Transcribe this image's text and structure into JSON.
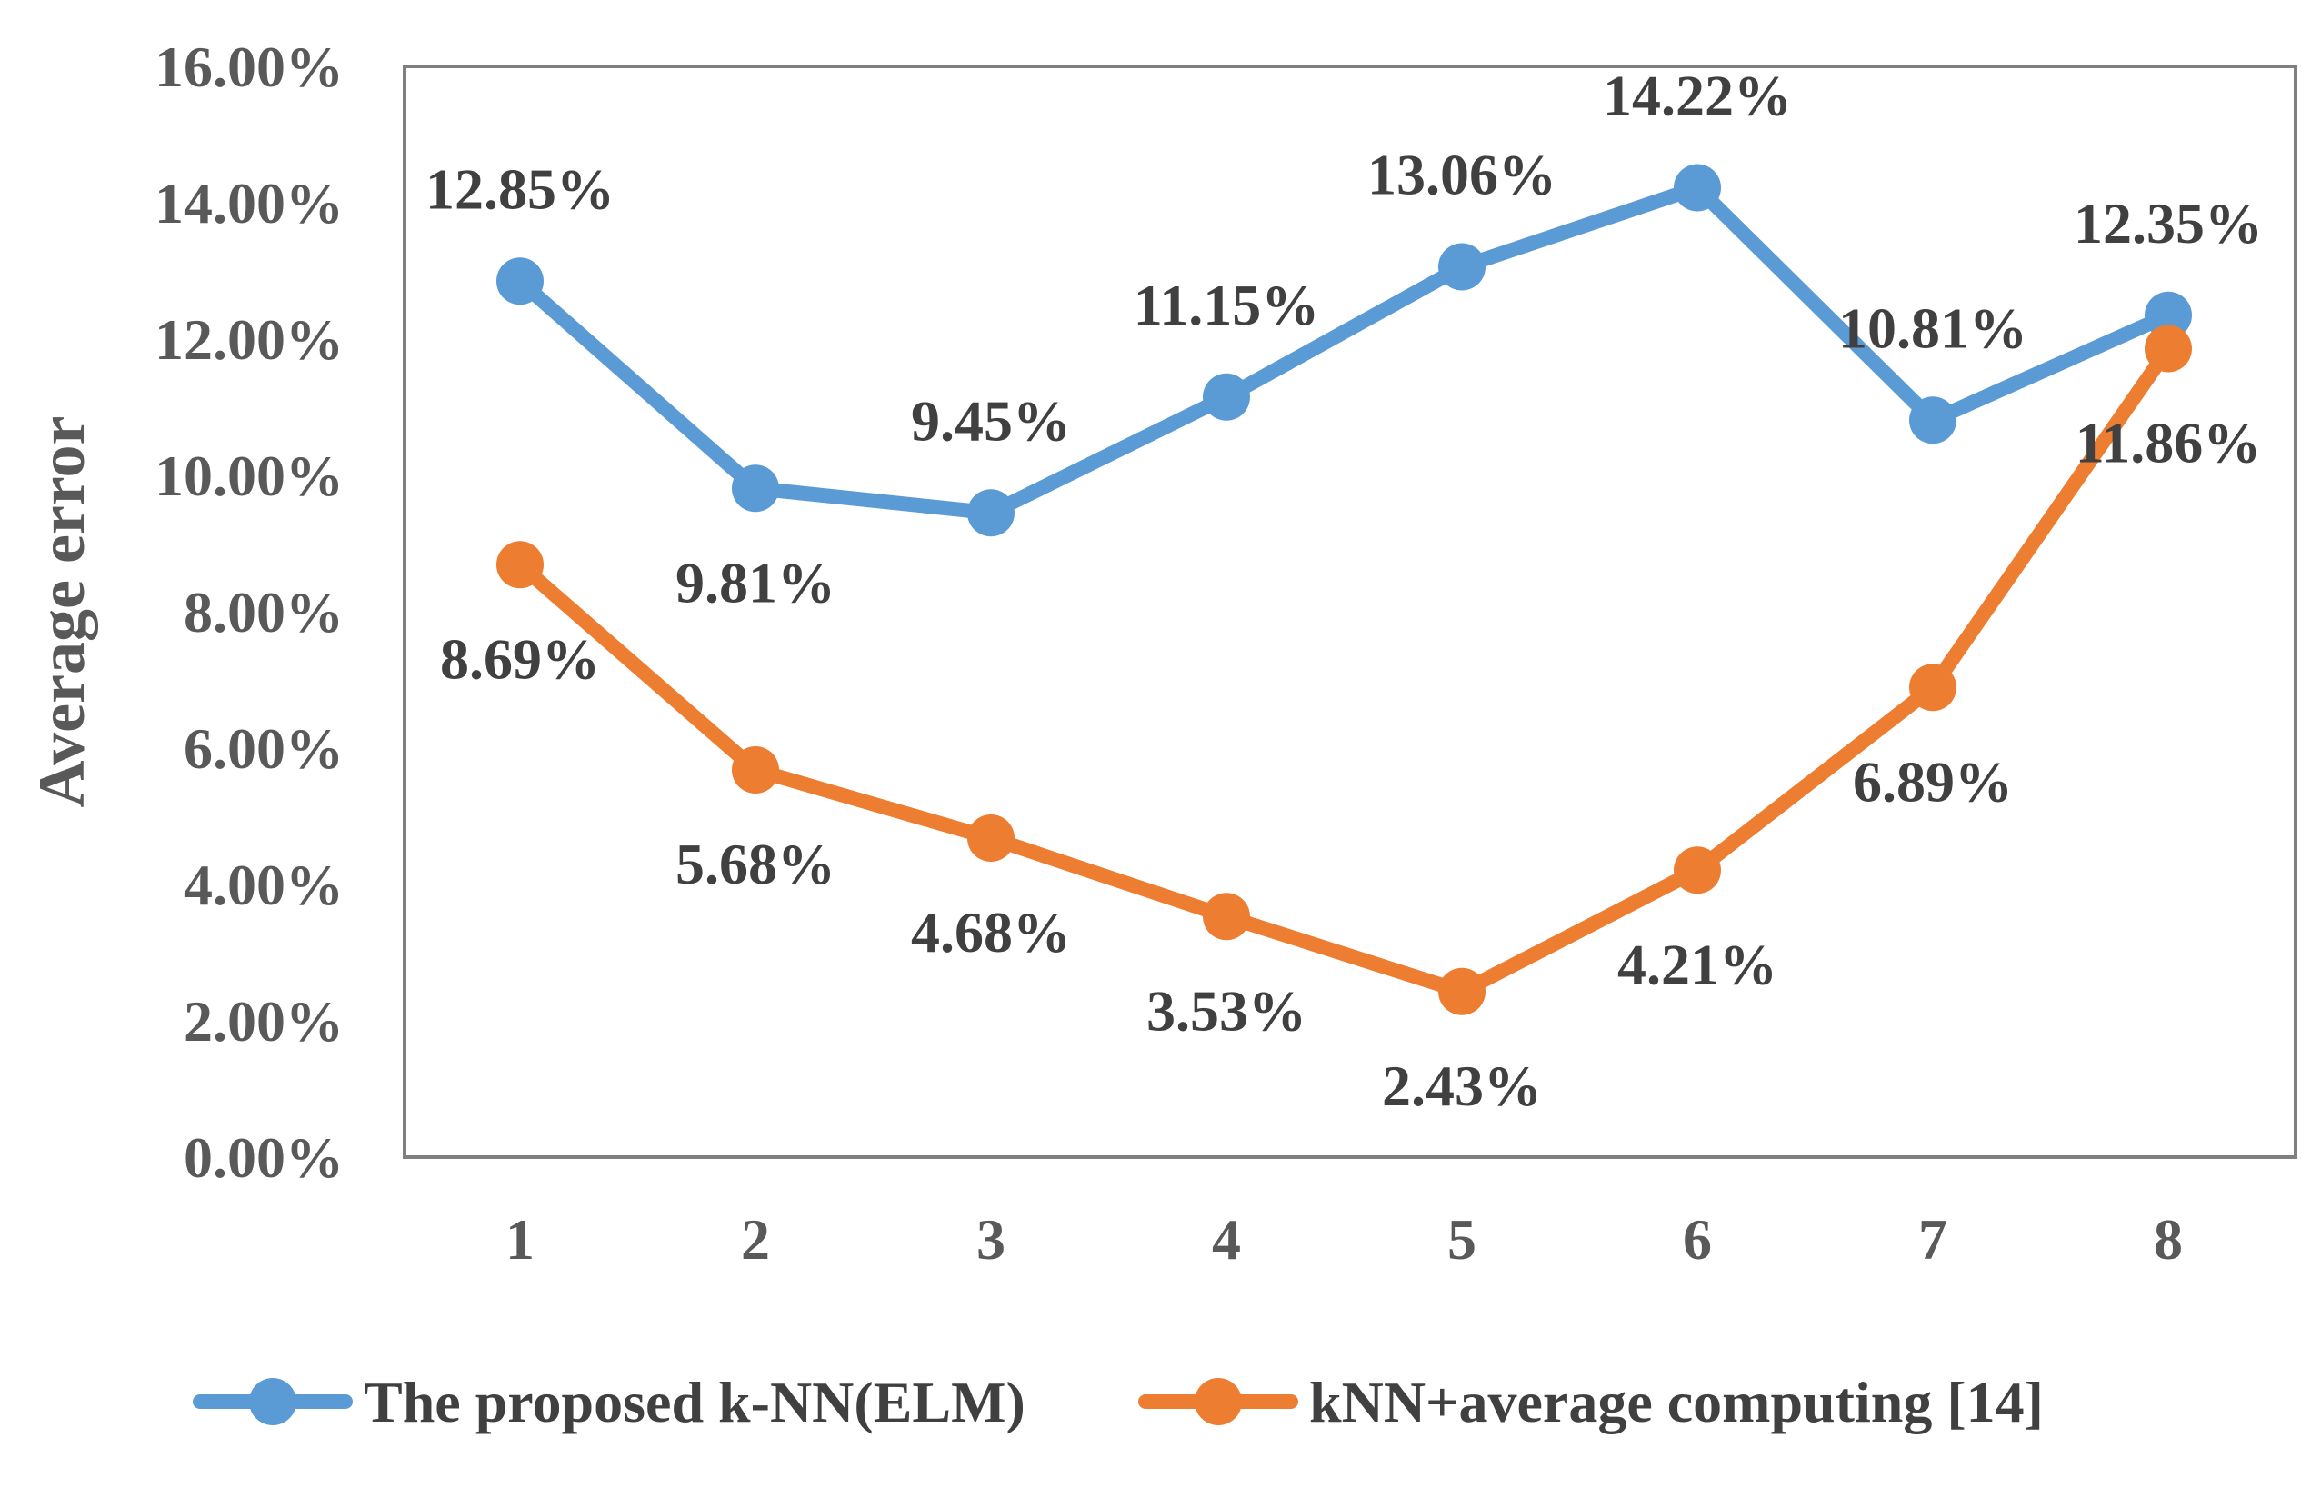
{
  "chart_data": {
    "type": "line",
    "title": "",
    "xlabel": "",
    "ylabel": "Average error",
    "categories": [
      "1",
      "2",
      "3",
      "4",
      "5",
      "6",
      "7",
      "8"
    ],
    "ylim": [
      0,
      16
    ],
    "ytick_labels": [
      "0.00%",
      "2.00%",
      "4.00%",
      "6.00%",
      "8.00%",
      "10.00%",
      "12.00%",
      "14.00%",
      "16.00%"
    ],
    "grid": false,
    "legend_position": "bottom",
    "series": [
      {
        "name": "The proposed k-NN(ELM)",
        "color": "#5B9BD5",
        "values": [
          12.85,
          9.81,
          9.45,
          11.15,
          13.06,
          14.22,
          10.81,
          12.35
        ],
        "labels": [
          "12.85%",
          "9.81%",
          "9.45%",
          "11.15%",
          "13.06%",
          "14.22%",
          "10.81%",
          "12.35%"
        ]
      },
      {
        "name": "kNN+average computing [14]",
        "color": "#ED7D31",
        "values": [
          8.69,
          5.68,
          4.68,
          3.53,
          2.43,
          4.21,
          6.89,
          11.86
        ],
        "labels": [
          "8.69%",
          "5.68%",
          "4.68%",
          "3.53%",
          "2.43%",
          "4.21%",
          "6.89%",
          "11.86%"
        ]
      }
    ]
  }
}
